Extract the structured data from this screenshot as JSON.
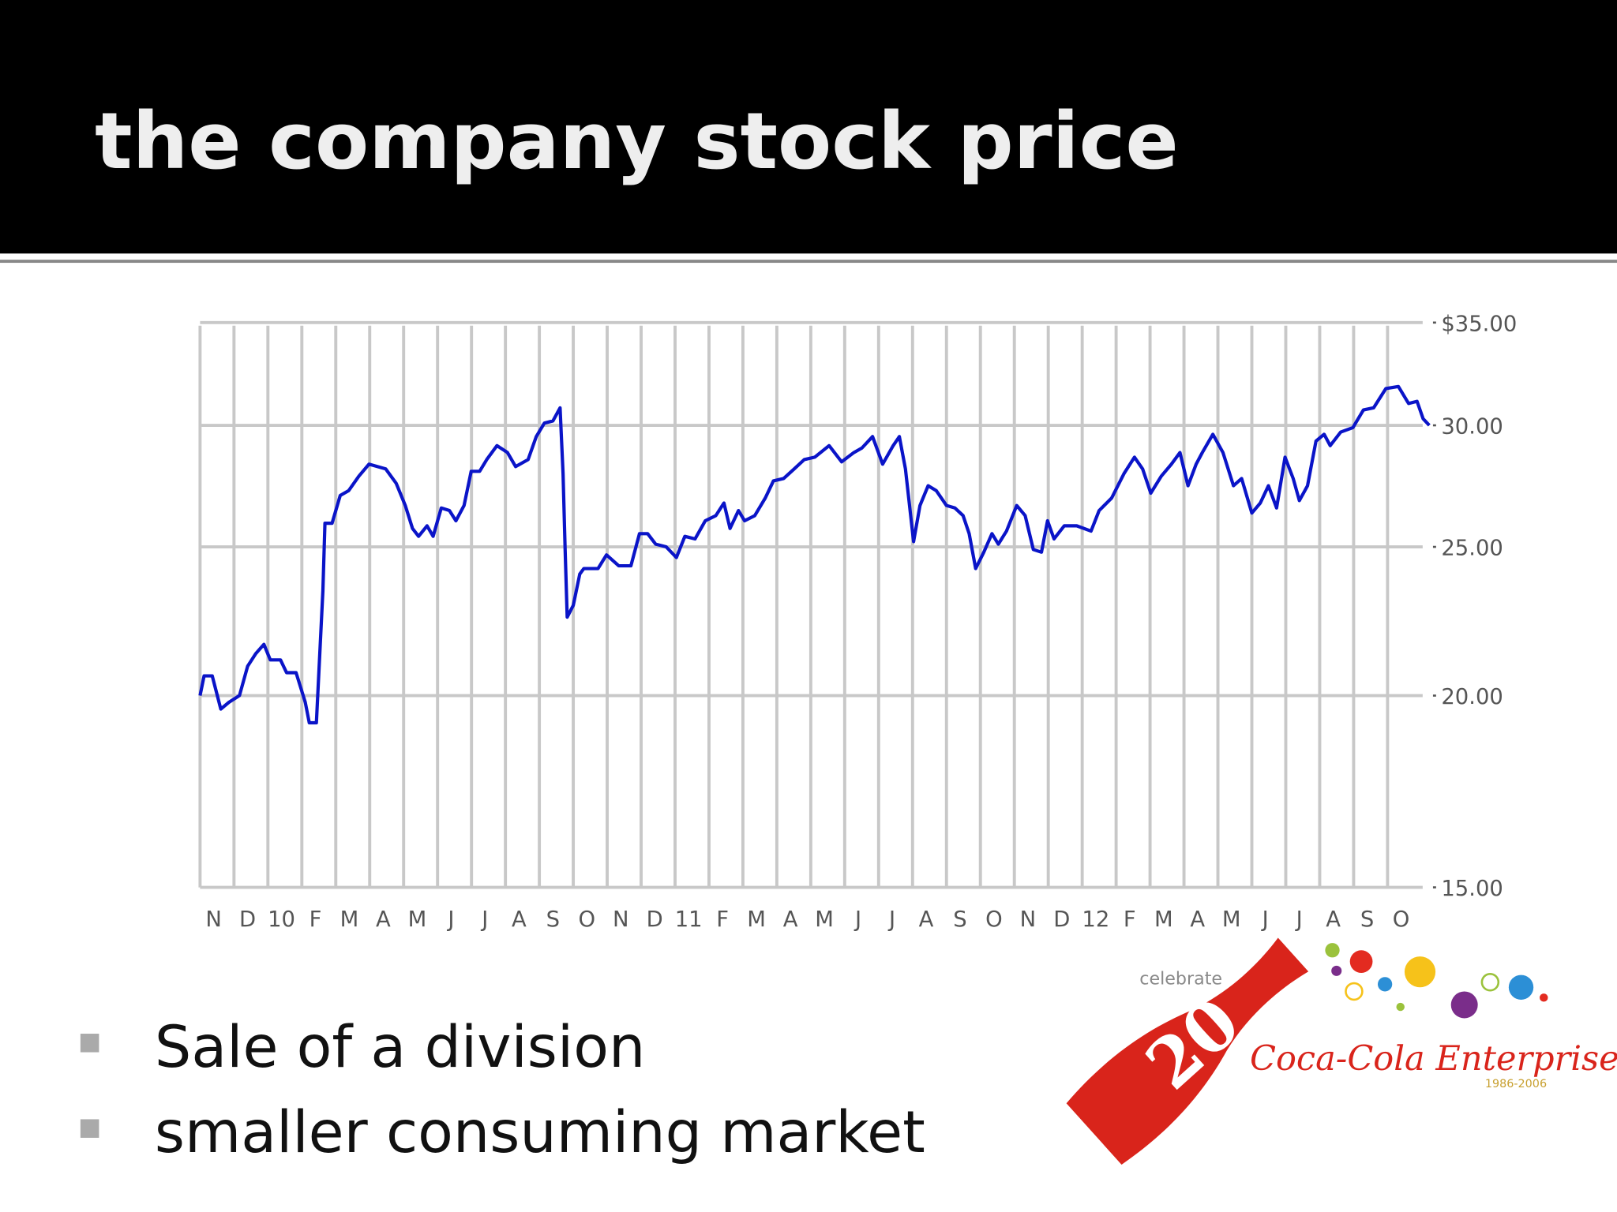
{
  "slide": {
    "title": "the company stock price",
    "bullets": [
      "Sale of a division",
      "smaller consuming market"
    ]
  },
  "logo": {
    "tagline": "celebrate",
    "number": "20",
    "brand": "Coca-Cola Enterprises",
    "years": "1986-2006"
  },
  "chart_data": {
    "type": "line",
    "color": "#0a14c8",
    "log_scale_y": true,
    "grid": true,
    "xlim": [
      0,
      36.4
    ],
    "ylim": [
      15,
      35
    ],
    "yticks": [
      {
        "value": 35,
        "label": "$35.00"
      },
      {
        "value": 30,
        "label": "30.00"
      },
      {
        "value": 25,
        "label": "25.00"
      },
      {
        "value": 20,
        "label": "20.00"
      },
      {
        "value": 15,
        "label": "15.00"
      }
    ],
    "xticks": [
      {
        "value": 0,
        "label": "N"
      },
      {
        "value": 1,
        "label": "D"
      },
      {
        "value": 2,
        "label": "10"
      },
      {
        "value": 3,
        "label": "F"
      },
      {
        "value": 4,
        "label": "M"
      },
      {
        "value": 5,
        "label": "A"
      },
      {
        "value": 6,
        "label": "M"
      },
      {
        "value": 7,
        "label": "J"
      },
      {
        "value": 8,
        "label": "J"
      },
      {
        "value": 9,
        "label": "A"
      },
      {
        "value": 10,
        "label": "S"
      },
      {
        "value": 11,
        "label": "O"
      },
      {
        "value": 12,
        "label": "N"
      },
      {
        "value": 13,
        "label": "D"
      },
      {
        "value": 14,
        "label": "11"
      },
      {
        "value": 15,
        "label": "F"
      },
      {
        "value": 16,
        "label": "M"
      },
      {
        "value": 17,
        "label": "A"
      },
      {
        "value": 18,
        "label": "M"
      },
      {
        "value": 19,
        "label": "J"
      },
      {
        "value": 20,
        "label": "J"
      },
      {
        "value": 21,
        "label": "A"
      },
      {
        "value": 22,
        "label": "S"
      },
      {
        "value": 23,
        "label": "O"
      },
      {
        "value": 24,
        "label": "N"
      },
      {
        "value": 25,
        "label": "D"
      },
      {
        "value": 26,
        "label": "12"
      },
      {
        "value": 27,
        "label": "F"
      },
      {
        "value": 28,
        "label": "M"
      },
      {
        "value": 29,
        "label": "A"
      },
      {
        "value": 30,
        "label": "M"
      },
      {
        "value": 31,
        "label": "J"
      },
      {
        "value": 32,
        "label": "J"
      },
      {
        "value": 33,
        "label": "A"
      },
      {
        "value": 34,
        "label": "S"
      },
      {
        "value": 35,
        "label": "O"
      }
    ],
    "x": [
      0,
      0.12,
      0.36,
      0.61,
      0.85,
      1.16,
      1.4,
      1.64,
      1.88,
      2.07,
      2.37,
      2.55,
      2.83,
      3.1,
      3.22,
      3.43,
      3.53,
      3.62,
      3.68,
      3.89,
      4.13,
      4.38,
      4.68,
      4.98,
      5.47,
      5.78,
      6.05,
      6.26,
      6.44,
      6.69,
      6.87,
      7.11,
      7.35,
      7.54,
      7.78,
      7.99,
      8.24,
      8.45,
      8.75,
      9.06,
      9.3,
      9.67,
      9.91,
      10.15,
      10.4,
      10.61,
      10.7,
      10.76,
      10.82,
      11.0,
      11.19,
      11.31,
      11.73,
      11.98,
      12.34,
      12.7,
      12.95,
      13.19,
      13.43,
      13.74,
      14.04,
      14.29,
      14.59,
      14.89,
      15.2,
      15.44,
      15.62,
      15.87,
      16.05,
      16.35,
      16.66,
      16.9,
      17.2,
      17.51,
      17.81,
      18.12,
      18.54,
      18.91,
      19.27,
      19.51,
      19.82,
      20.12,
      20.43,
      20.61,
      20.79,
      21.03,
      21.22,
      21.46,
      21.7,
      22.0,
      22.25,
      22.49,
      22.67,
      22.86,
      23.1,
      23.34,
      23.53,
      23.77,
      24.07,
      24.32,
      24.56,
      24.8,
      24.98,
      25.17,
      25.47,
      25.84,
      26.26,
      26.5,
      26.87,
      27.23,
      27.54,
      27.78,
      28.02,
      28.33,
      28.63,
      28.88,
      29.12,
      29.36,
      29.54,
      29.85,
      30.15,
      30.46,
      30.7,
      31.0,
      31.25,
      31.49,
      31.73,
      31.98,
      32.22,
      32.4,
      32.64,
      32.89,
      33.13,
      33.31,
      33.62,
      33.98,
      34.29,
      34.59,
      34.95,
      35.32,
      35.62,
      35.87,
      36.05,
      36.23
    ],
    "values": [
      20.0,
      20.6,
      20.6,
      19.6,
      19.8,
      20.0,
      20.9,
      21.3,
      21.6,
      21.1,
      21.1,
      20.7,
      20.7,
      19.8,
      19.2,
      19.2,
      21.3,
      23.4,
      25.9,
      25.9,
      27.0,
      27.2,
      27.8,
      28.3,
      28.1,
      27.5,
      26.6,
      25.7,
      25.4,
      25.8,
      25.4,
      26.5,
      26.4,
      26.0,
      26.6,
      28.0,
      28.0,
      28.5,
      29.1,
      28.8,
      28.2,
      28.5,
      29.5,
      30.1,
      30.2,
      30.8,
      27.9,
      24.9,
      22.5,
      22.9,
      24.0,
      24.2,
      24.2,
      24.7,
      24.3,
      24.3,
      25.5,
      25.5,
      25.1,
      25.0,
      24.6,
      25.4,
      25.3,
      26.0,
      26.2,
      26.7,
      25.7,
      26.4,
      26.0,
      26.2,
      26.9,
      27.6,
      27.7,
      28.1,
      28.5,
      28.6,
      29.1,
      28.4,
      28.8,
      29.0,
      29.5,
      28.3,
      29.1,
      29.5,
      28.1,
      25.2,
      26.6,
      27.4,
      27.2,
      26.6,
      26.5,
      26.2,
      25.5,
      24.2,
      24.8,
      25.5,
      25.1,
      25.6,
      26.6,
      26.2,
      24.9,
      24.8,
      26.0,
      25.3,
      25.8,
      25.8,
      25.6,
      26.4,
      26.9,
      27.9,
      28.6,
      28.1,
      27.1,
      27.8,
      28.3,
      28.8,
      27.4,
      28.3,
      28.8,
      29.6,
      28.8,
      27.4,
      27.7,
      26.3,
      26.7,
      27.4,
      26.5,
      28.6,
      27.7,
      26.8,
      27.4,
      29.3,
      29.6,
      29.1,
      29.7,
      29.9,
      30.7,
      30.8,
      31.7,
      31.8,
      31.0,
      31.1,
      30.3,
      30.0
    ]
  }
}
